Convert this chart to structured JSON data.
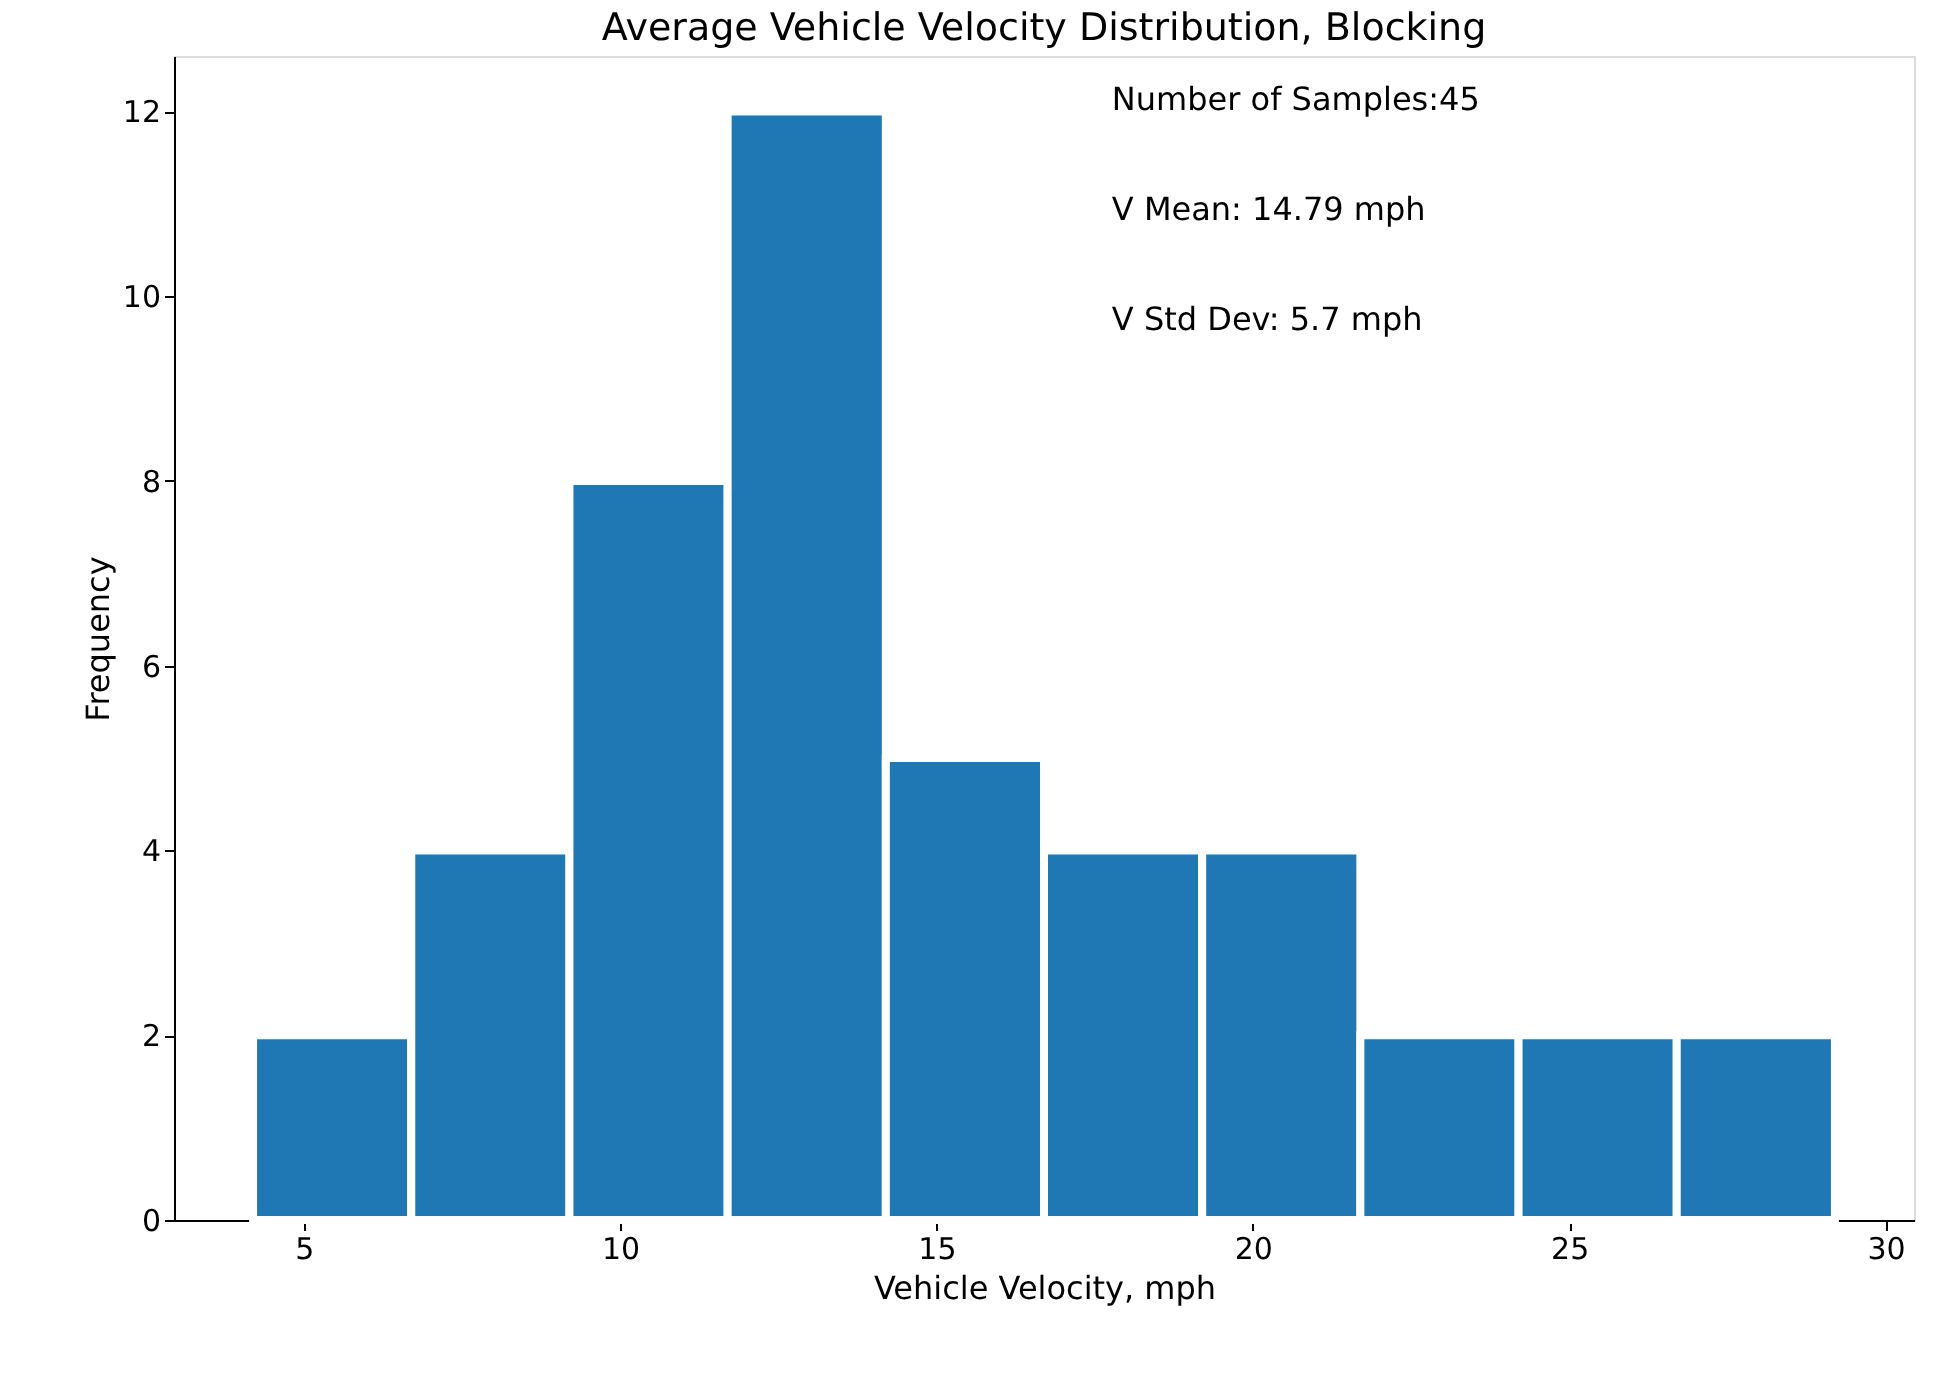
{
  "chart_data": {
    "type": "histogram",
    "title": "Average Vehicle Velocity Distribution, Blocking",
    "xlabel": "Vehicle Velocity, mph",
    "ylabel": "Frequency",
    "bins": [
      4.2,
      6.7,
      9.2,
      11.7,
      14.2,
      16.7,
      19.2,
      21.7,
      24.2,
      26.7,
      29.2
    ],
    "values": [
      2,
      4,
      8,
      12,
      5,
      4,
      4,
      2,
      2,
      2
    ],
    "color": "#1f77b4",
    "xlim": [
      2.95,
      30.45
    ],
    "xticks": [
      5,
      10,
      15,
      20,
      25,
      30
    ],
    "ylim": [
      0,
      12.6
    ],
    "yticks": [
      0,
      2,
      4,
      6,
      8,
      10,
      12
    ],
    "grid": false,
    "annotations": [
      "Number of Samples:45",
      "V Mean: 14.79 mph",
      "V Std Dev: 5.7 mph"
    ]
  }
}
